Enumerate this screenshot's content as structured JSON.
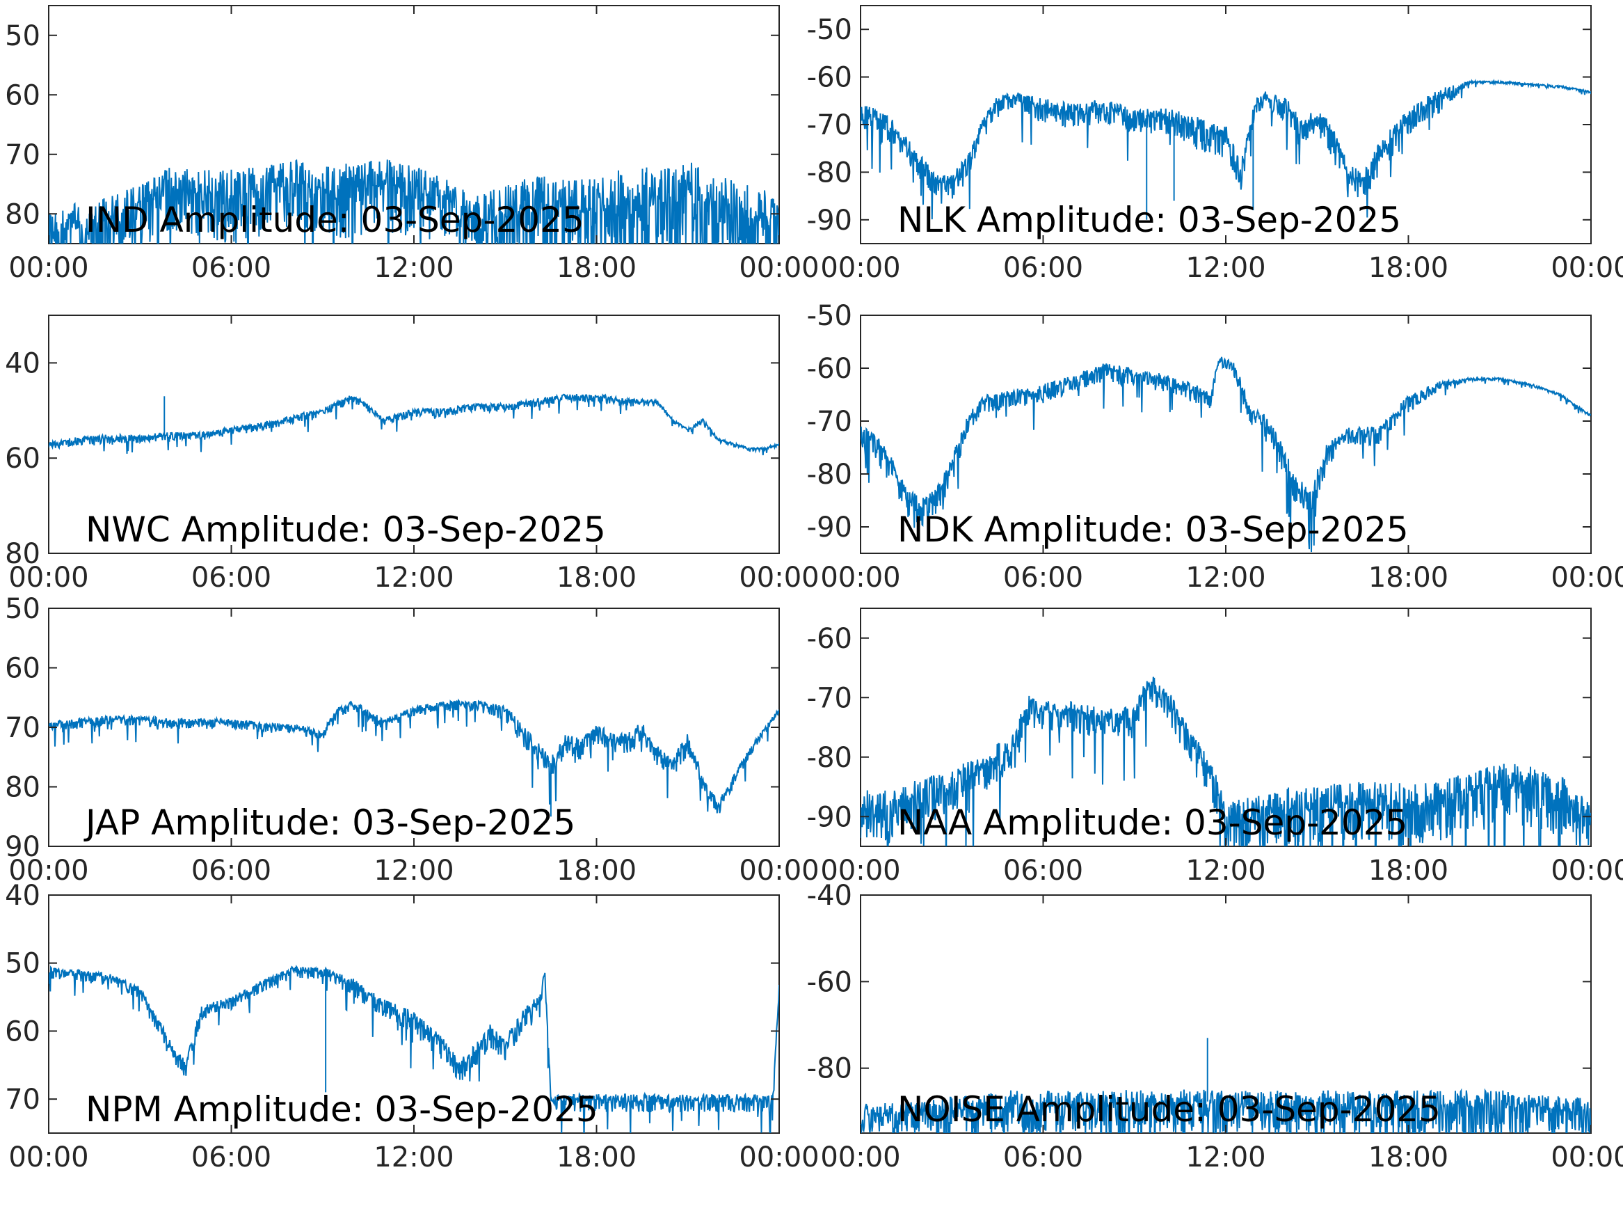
{
  "chart_data": [
    {
      "type": "line",
      "title": "IND Amplitude: 03-Sep-2025",
      "x_tick_labels": [
        "00:00",
        "06:00",
        "12:00",
        "18:00",
        "00:00"
      ],
      "x_hours": [
        0,
        24
      ],
      "ylim": [
        -85,
        -45
      ],
      "y_ticks": [
        -50,
        -60,
        -70,
        -80
      ],
      "y_tick_labels": [
        "50",
        "60",
        "70",
        "80"
      ],
      "series": [
        {
          "color": "#0072BD",
          "x": [
            0,
            1,
            2,
            3,
            4,
            5,
            6,
            7,
            8,
            9,
            10,
            11,
            12,
            13,
            14,
            15,
            16,
            17,
            18,
            19,
            20,
            21,
            22,
            23,
            24
          ],
          "y": [
            -82,
            -81,
            -80,
            -78,
            -75,
            -76,
            -76,
            -75,
            -74,
            -75,
            -75,
            -74,
            -75,
            -77,
            -80,
            -79,
            -78,
            -78,
            -78,
            -77,
            -77,
            -76,
            -78,
            -79,
            -80
          ],
          "noise": [
            6,
            6,
            6,
            6,
            6,
            7,
            7,
            7,
            7,
            7,
            7,
            7,
            7,
            6,
            6,
            8,
            9,
            9,
            9,
            10,
            10,
            10,
            9,
            8,
            7
          ],
          "dips": []
        }
      ]
    },
    {
      "type": "line",
      "title": "NLK Amplitude: 03-Sep-2025",
      "x_tick_labels": [
        "00:00",
        "06:00",
        "12:00",
        "18:00",
        "00:00"
      ],
      "x_hours": [
        0,
        24
      ],
      "ylim": [
        -95,
        -45
      ],
      "y_ticks": [
        -50,
        -60,
        -70,
        -80,
        -90
      ],
      "y_tick_labels": [
        "-50",
        "-60",
        "-70",
        "-80",
        "-90"
      ],
      "series": [
        {
          "color": "#0072BD",
          "x": [
            0,
            0.5,
            1,
            1.5,
            2,
            2.5,
            3,
            3.5,
            4,
            4.5,
            5,
            6,
            7,
            8,
            9,
            10,
            11,
            12,
            12.5,
            12.8,
            13,
            13.3,
            14,
            14.5,
            15,
            15.5,
            16,
            16.5,
            17,
            18,
            19,
            20,
            21,
            22,
            23,
            24
          ],
          "y": [
            -67,
            -68,
            -70,
            -74,
            -78,
            -82,
            -82,
            -78,
            -70,
            -65,
            -64,
            -66,
            -67,
            -66,
            -68,
            -68,
            -70,
            -72,
            -80,
            -70,
            -65,
            -64,
            -66,
            -70,
            -68,
            -72,
            -80,
            -82,
            -76,
            -68,
            -64,
            -61,
            -61,
            -61.5,
            -62,
            -63
          ],
          "noise": [
            3,
            3,
            3,
            3,
            3,
            3,
            3,
            3,
            2,
            2,
            2,
            3,
            3,
            3,
            3,
            3,
            4,
            4,
            4,
            2,
            2,
            2,
            3,
            3,
            3,
            4,
            4,
            4,
            4,
            3,
            3,
            0.3,
            0.3,
            0.3,
            0.3,
            0.3
          ],
          "dips": [
            [
              9.4,
              -90
            ],
            [
              10.3,
              -86
            ],
            [
              12.9,
              -88
            ]
          ]
        }
      ]
    },
    {
      "type": "line",
      "title": "NWC Amplitude: 03-Sep-2025",
      "x_tick_labels": [
        "00:00",
        "06:00",
        "12:00",
        "18:00",
        "00:00"
      ],
      "x_hours": [
        0,
        24
      ],
      "ylim": [
        -80,
        -30
      ],
      "y_ticks": [
        -40,
        -60,
        -80
      ],
      "y_tick_labels": [
        "40",
        "60",
        "80"
      ],
      "series": [
        {
          "color": "#0072BD",
          "x": [
            0,
            1,
            2,
            3,
            4,
            5,
            6,
            7,
            8,
            9,
            10,
            10.5,
            11,
            11.5,
            12,
            13,
            14,
            15,
            16,
            17,
            18,
            19,
            20,
            20.5,
            21,
            21.5,
            22,
            22.5,
            23,
            23.5,
            24
          ],
          "y": [
            -57,
            -56,
            -55.5,
            -55.5,
            -55,
            -55,
            -54,
            -53,
            -51.5,
            -50,
            -47,
            -49,
            -52,
            -51,
            -50,
            -50,
            -49,
            -49,
            -48,
            -47,
            -47,
            -48,
            -48,
            -52,
            -54,
            -52,
            -56,
            -57,
            -58,
            -58,
            -57
          ],
          "noise": [
            1,
            1,
            1,
            1,
            1,
            1,
            1,
            1,
            1,
            1,
            1,
            1,
            1,
            1,
            1,
            1,
            1,
            1,
            1,
            1,
            1,
            1,
            0.5,
            0.5,
            0.5,
            0.5,
            0.4,
            0.4,
            0.4,
            0.4,
            0.4
          ],
          "dips": [
            [
              3.8,
              -47
            ]
          ]
        }
      ]
    },
    {
      "type": "line",
      "title": "NDK Amplitude: 03-Sep-2025",
      "x_tick_labels": [
        "00:00",
        "06:00",
        "12:00",
        "18:00",
        "00:00"
      ],
      "x_hours": [
        0,
        24
      ],
      "ylim": [
        -95,
        -50
      ],
      "y_ticks": [
        -50,
        -60,
        -70,
        -80,
        -90
      ],
      "y_tick_labels": [
        "-50",
        "-60",
        "-70",
        "-80",
        "-90"
      ],
      "series": [
        {
          "color": "#0072BD",
          "x": [
            0,
            0.5,
            1,
            1.5,
            2,
            2.5,
            3,
            3.5,
            4,
            5,
            6,
            7,
            8,
            9,
            10,
            11,
            11.5,
            11.8,
            12.3,
            12.8,
            13.3,
            13.8,
            14.3,
            14.8,
            15.3,
            16,
            17,
            18,
            19,
            20,
            21,
            22,
            23,
            24
          ],
          "y": [
            -72,
            -74,
            -78,
            -84,
            -86,
            -84,
            -78,
            -70,
            -66,
            -65,
            -64,
            -62,
            -60,
            -61,
            -62,
            -64,
            -65,
            -58,
            -60,
            -68,
            -70,
            -75,
            -82,
            -84,
            -76,
            -72,
            -72,
            -66,
            -63,
            -62,
            -62,
            -63,
            -65,
            -69
          ],
          "noise": [
            3,
            3,
            3,
            3,
            3,
            3,
            3,
            2,
            2,
            2,
            2,
            2,
            2,
            2,
            2,
            2,
            2,
            1,
            2,
            2,
            3,
            3,
            3,
            3,
            3,
            2,
            2,
            2,
            1,
            0.3,
            0.3,
            0.3,
            0.3,
            0.3
          ],
          "dips": []
        }
      ]
    },
    {
      "type": "line",
      "title": "JAP Amplitude: 03-Sep-2025",
      "x_tick_labels": [
        "00:00",
        "06:00",
        "12:00",
        "18:00",
        "00:00"
      ],
      "x_hours": [
        0,
        24
      ],
      "ylim": [
        -90,
        -50
      ],
      "y_ticks": [
        -50,
        -60,
        -70,
        -80,
        -90
      ],
      "y_tick_labels": [
        "50",
        "60",
        "70",
        "80",
        "90"
      ],
      "series": [
        {
          "color": "#0072BD",
          "x": [
            0,
            1,
            2,
            3,
            4,
            5,
            6,
            7,
            8,
            9,
            9.5,
            10,
            11,
            12,
            13,
            14,
            15,
            15.5,
            16,
            16.5,
            17,
            17.5,
            18,
            18.5,
            19,
            19.5,
            20,
            20.5,
            21,
            21.5,
            22,
            23,
            24
          ],
          "y": [
            -69.5,
            -69,
            -68.5,
            -68.5,
            -69,
            -69,
            -69,
            -69.5,
            -70,
            -71,
            -67,
            -66,
            -69,
            -67,
            -66,
            -66,
            -67,
            -70,
            -73,
            -76,
            -72,
            -73,
            -70,
            -72,
            -72,
            -70,
            -74,
            -76,
            -72,
            -79,
            -83,
            -74,
            -67
          ],
          "noise": [
            1,
            1,
            1,
            1,
            1,
            1,
            1,
            1,
            1,
            1,
            1,
            1,
            1,
            1,
            1,
            1,
            1.5,
            2,
            2,
            2,
            2,
            2,
            2,
            2,
            2,
            2,
            2,
            2,
            2,
            1.5,
            1.5,
            1,
            0.5
          ],
          "dips": [
            [
              16.5,
              -85
            ]
          ]
        }
      ]
    },
    {
      "type": "line",
      "title": "NAA Amplitude: 03-Sep-2025",
      "x_tick_labels": [
        "00:00",
        "06:00",
        "12:00",
        "18:00",
        "00:00"
      ],
      "x_hours": [
        0,
        24
      ],
      "ylim": [
        -95,
        -55
      ],
      "y_ticks": [
        -60,
        -70,
        -80,
        -90
      ],
      "y_tick_labels": [
        "-60",
        "-70",
        "-80",
        "-90"
      ],
      "series": [
        {
          "color": "#0072BD",
          "x": [
            0,
            1,
            2,
            3,
            4,
            5,
            5.5,
            6,
            7,
            8,
            9,
            9.5,
            10,
            10.5,
            11,
            11.5,
            12,
            13,
            14,
            15,
            16,
            17,
            18,
            19,
            20,
            21,
            22,
            23,
            24
          ],
          "y": [
            -88,
            -88,
            -86,
            -84,
            -81,
            -78,
            -71,
            -72,
            -72,
            -73,
            -73,
            -67,
            -69,
            -74,
            -78,
            -82,
            -90,
            -89,
            -88,
            -88,
            -87,
            -87,
            -87,
            -87,
            -85,
            -84,
            -84,
            -86,
            -90
          ],
          "noise": [
            5,
            5,
            5,
            4,
            4,
            4,
            3,
            3,
            3,
            3,
            3,
            3,
            3,
            3,
            3,
            4,
            5,
            5,
            6,
            6,
            6,
            6,
            6,
            6,
            6,
            6,
            6,
            6,
            5
          ],
          "dips": []
        }
      ]
    },
    {
      "type": "line",
      "title": "NPM Amplitude: 03-Sep-2025",
      "x_tick_labels": [
        "00:00",
        "06:00",
        "12:00",
        "18:00",
        "00:00"
      ],
      "x_hours": [
        0,
        24
      ],
      "ylim": [
        -75,
        -40
      ],
      "y_ticks": [
        -40,
        -50,
        -60,
        -70
      ],
      "y_tick_labels": [
        "40",
        "50",
        "60",
        "70"
      ],
      "series": [
        {
          "color": "#0072BD",
          "x": [
            0,
            1,
            2,
            3,
            3.5,
            4,
            4.5,
            5,
            5.5,
            6,
            7,
            8,
            9,
            10,
            11,
            12,
            13,
            13.5,
            14,
            14.5,
            15,
            15.5,
            16,
            16.2,
            16.3,
            16.5,
            17,
            18,
            19,
            20,
            21,
            22,
            23,
            23.5,
            23.8,
            24
          ],
          "y": [
            -51,
            -51.5,
            -52,
            -54,
            -58,
            -62,
            -65,
            -57,
            -56,
            -55.5,
            -53,
            -51,
            -51,
            -53,
            -56,
            -58,
            -62,
            -65,
            -63,
            -60,
            -62,
            -58,
            -56,
            -54,
            -51,
            -70,
            -70,
            -70,
            -70,
            -70,
            -70,
            -70,
            -70,
            -70,
            -70,
            -53
          ],
          "noise": [
            1,
            1,
            1,
            1,
            1.5,
            1.5,
            1.5,
            1.5,
            1,
            1,
            1,
            1,
            1,
            1.5,
            1.5,
            2,
            2,
            2,
            2,
            2,
            2,
            2,
            2,
            1,
            1,
            1.5,
            1.5,
            1.5,
            1.5,
            1.5,
            1.5,
            1.5,
            1.5,
            1.5,
            1.5,
            1
          ],
          "dips": [
            [
              9.1,
              -69
            ]
          ]
        }
      ]
    },
    {
      "type": "line",
      "title": "NOISE Amplitude: 03-Sep-2025",
      "x_tick_labels": [
        "00:00",
        "06:00",
        "12:00",
        "18:00",
        "00:00"
      ],
      "x_hours": [
        0,
        24
      ],
      "ylim": [
        -95,
        -40
      ],
      "y_ticks": [
        -40,
        -60,
        -80
      ],
      "y_tick_labels": [
        "-40",
        "-60",
        "-80"
      ],
      "series": [
        {
          "color": "#0072BD",
          "x": [
            0,
            1,
            2,
            3,
            4,
            5,
            6,
            7,
            8,
            9,
            10,
            11,
            12,
            13,
            14,
            15,
            16,
            17,
            18,
            19,
            20,
            21,
            22,
            23,
            24
          ],
          "y": [
            -90,
            -90,
            -89.5,
            -89,
            -88.5,
            -88,
            -88,
            -88,
            -88,
            -88,
            -88,
            -87.5,
            -88,
            -88,
            -88,
            -88,
            -88,
            -88,
            -88,
            -88,
            -88,
            -88,
            -88.5,
            -89,
            -89
          ],
          "noise": [
            4,
            4,
            4.5,
            5,
            5,
            6,
            6,
            6,
            6,
            6,
            6,
            6,
            6,
            6,
            6,
            6,
            6,
            6,
            6,
            6,
            6,
            6,
            5,
            5,
            5
          ],
          "dips": [
            [
              11.4,
              -73
            ]
          ]
        }
      ]
    }
  ]
}
